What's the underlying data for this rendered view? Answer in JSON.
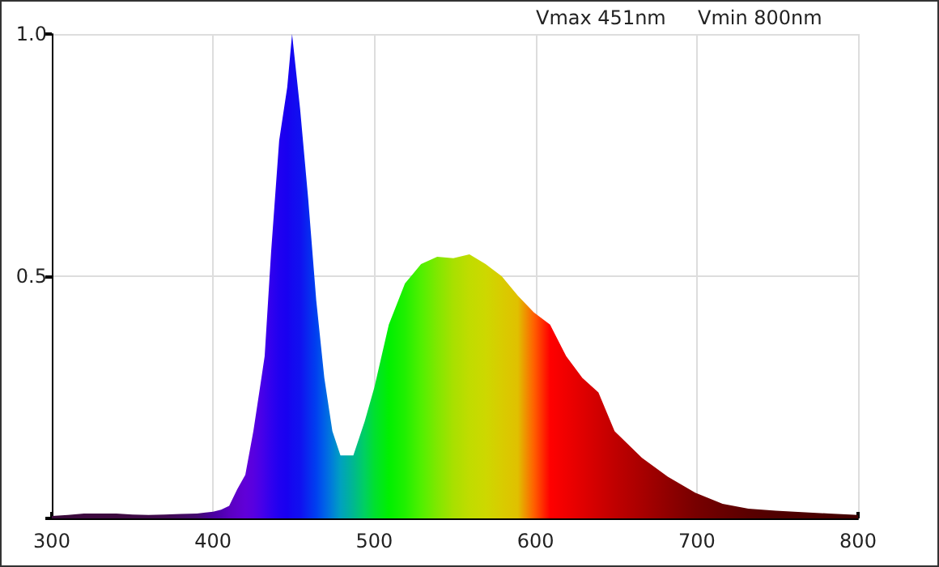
{
  "chart_data": {
    "type": "area",
    "annotations": [
      "Vmax 451nm",
      "Vmin 800nm"
    ],
    "x": [
      300,
      310,
      320,
      330,
      340,
      350,
      360,
      370,
      380,
      390,
      400,
      405,
      410,
      415,
      420,
      425,
      430,
      432,
      436,
      441,
      446,
      449,
      454,
      459,
      464,
      469,
      474,
      479,
      487,
      494,
      500,
      509,
      519,
      529,
      539,
      549,
      559,
      569,
      579,
      589,
      599,
      609,
      619,
      629,
      639,
      649,
      666,
      682,
      699,
      716,
      732,
      749,
      782,
      800
    ],
    "values": [
      0.005,
      0.007,
      0.01,
      0.01,
      0.01,
      0.008,
      0.007,
      0.008,
      0.009,
      0.01,
      0.014,
      0.018,
      0.026,
      0.06,
      0.09,
      0.18,
      0.29,
      0.335,
      0.55,
      0.78,
      0.89,
      1.0,
      0.845,
      0.66,
      0.45,
      0.29,
      0.18,
      0.13,
      0.13,
      0.2,
      0.27,
      0.4,
      0.485,
      0.525,
      0.54,
      0.537,
      0.545,
      0.525,
      0.5,
      0.46,
      0.425,
      0.4,
      0.335,
      0.29,
      0.26,
      0.18,
      0.125,
      0.086,
      0.053,
      0.03,
      0.02,
      0.016,
      0.01,
      0.007
    ],
    "colors": [
      "#3a0a3a",
      "#3a0a3a",
      "#3e0a40",
      "#3e0a40",
      "#3e0a40",
      "#3e0a44",
      "#3e0a48",
      "#400a50",
      "#420a60",
      "#440a70",
      "#4a00a0",
      "#5000b0",
      "#5a00c0",
      "#5e00cc",
      "#6000d8",
      "#5800e0",
      "#4800e8",
      "#4000ea",
      "#3000ee",
      "#2000f0",
      "#1800f0",
      "#1408f0",
      "#1010f0",
      "#0828f0",
      "#0040f0",
      "#0060e8",
      "#0080d8",
      "#00a0c0",
      "#00b890",
      "#00d060",
      "#00e030",
      "#00f000",
      "#20f000",
      "#50f000",
      "#80e800",
      "#a8e000",
      "#c0dc00",
      "#cdd800",
      "#d8cc00",
      "#e0c000",
      "#ff6000",
      "#ff0000",
      "#f00000",
      "#e00000",
      "#d00000",
      "#c00000",
      "#a80000",
      "#900000",
      "#780000",
      "#680000",
      "#5a0000",
      "#500000",
      "#480000",
      "#400000"
    ],
    "xlim": [
      300,
      800
    ],
    "xticks": [
      300,
      400,
      500,
      600,
      700,
      800
    ],
    "ylim": [
      0,
      1
    ],
    "yticks": [
      {
        "value": 0,
        "label": null
      },
      0.5,
      {
        "value": 1,
        "label": "1.0"
      }
    ],
    "grid": true,
    "marker": "none"
  }
}
